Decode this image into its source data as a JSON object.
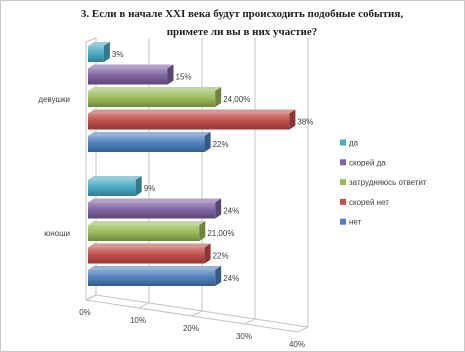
{
  "chart_data": {
    "type": "bar",
    "orientation": "horizontal",
    "three_d": true,
    "title": "3. Если в начале XXI века будут происходить подобные события,\nпримете ли вы в них участие?",
    "categories": [
      "девушки",
      "юноши"
    ],
    "series": [
      {
        "name": "да",
        "color": "#4bacc6",
        "values": [
          3,
          9
        ],
        "labels": [
          "3%",
          "9%"
        ]
      },
      {
        "name": "скорей да",
        "color": "#8064a2",
        "values": [
          15,
          24
        ],
        "labels": [
          "15%",
          "24%"
        ]
      },
      {
        "name": "затрудняюсь ответит",
        "color": "#9bbb59",
        "values": [
          24,
          21
        ],
        "labels": [
          "24,00%",
          "21,00%"
        ]
      },
      {
        "name": "скорей нет",
        "color": "#c0504d",
        "values": [
          38,
          22
        ],
        "labels": [
          "38%",
          "22%"
        ]
      },
      {
        "name": "нет",
        "color": "#4f81bd",
        "values": [
          22,
          24
        ],
        "labels": [
          "22%",
          "24%"
        ]
      }
    ],
    "xlim": [
      0,
      40
    ],
    "xticks": [
      0,
      10,
      20,
      30,
      40
    ],
    "xtick_labels": [
      "0%",
      "10%",
      "20%",
      "30%",
      "40%"
    ],
    "grid": true,
    "legend": "right"
  }
}
